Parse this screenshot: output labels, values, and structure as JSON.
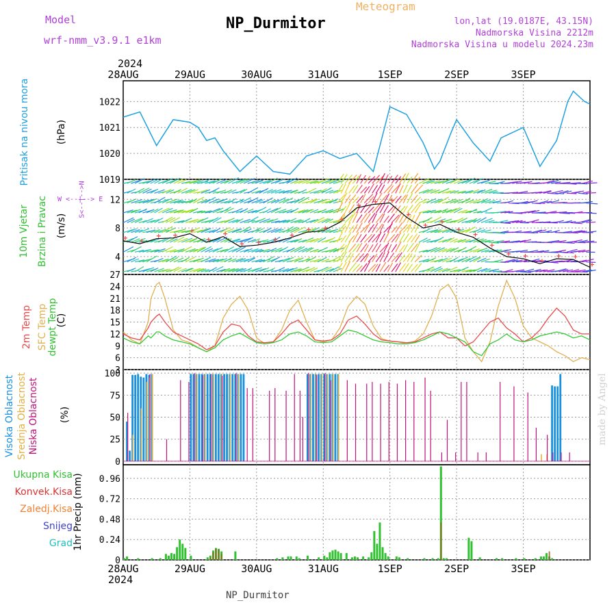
{
  "header": {
    "model_label": "Model",
    "model_value": "wrf-nmm_v3.9.1  e1km",
    "app_title": "Meteogram",
    "station_title": "NP_Durmitor",
    "location": "lon,lat (19.0187E, 43.15N)",
    "elevation": "Nadmorska Visina 2212m",
    "model_elevation": "Nadmorska Visina u modelu 2024.23m",
    "year": "2024"
  },
  "footer": {
    "station": "NP_Durmitor",
    "credit": "made by Angel"
  },
  "time_axis": {
    "labels": [
      "28AUG",
      "29AUG",
      "30AUG",
      "31AUG",
      "1SEP",
      "2SEP",
      "3SEP"
    ],
    "year": "2024"
  },
  "colors": {
    "pressure": "#1ea0e0",
    "temp2m": "#e84848",
    "sfc_temp": "#e0b050",
    "dewpt": "#30c830",
    "high_cloud": "#1890e0",
    "mid_cloud": "#e0b040",
    "low_cloud": "#c0107a",
    "total_precip": "#30c030",
    "conv_precip": "#e03030",
    "frz_precip": "#f08030",
    "snow": "#4040d0",
    "graupel": "#20c0c0"
  },
  "panels": {
    "pressure": {
      "labels": [
        "Pritisak na nivou mora",
        "(hPa)"
      ],
      "ylim": [
        1019,
        1022.8
      ],
      "yticks": [
        "1019",
        "1020",
        "1021",
        "1022"
      ]
    },
    "wind": {
      "labels": [
        "10m Vjetar",
        "Brzina i Pravac",
        "(m/s)"
      ],
      "compass": "W <--|--> E",
      "compass_ns": "S<--|-->N",
      "ylim": [
        1.5,
        14.8
      ],
      "yticks": [
        "4",
        "8",
        "12"
      ]
    },
    "temp": {
      "labels": [
        "2m Temp",
        "SFC Temp",
        "dewpt Temp",
        "(C)"
      ],
      "ylim": [
        3,
        27
      ],
      "yticks": [
        "3",
        "6",
        "9",
        "12",
        "15",
        "18",
        "21",
        "24",
        "27"
      ]
    },
    "cloud": {
      "labels": [
        "Visoka Oblacnost",
        "Srednja Oblacnost",
        "Niska Oblacnost",
        "(%)"
      ],
      "ylim": [
        0,
        100
      ],
      "yticks": [
        "0",
        "25",
        "50",
        "75",
        "100"
      ]
    },
    "precip": {
      "labels": [
        "Ukupna Kisa",
        "Konvek.Kisa",
        "Zaledj.Kisa",
        "Snijeg",
        "Grad"
      ],
      "ylabel": "1hr Precip (mm)",
      "ylim": [
        0,
        1.12
      ],
      "yticks": [
        "0",
        "0.24",
        "0.48",
        "0.72",
        "0.96"
      ]
    }
  },
  "chart_data": [
    {
      "type": "line",
      "name": "pressure",
      "title": "Pritisak na nivou mora",
      "ylabel": "(hPa)",
      "x_unit": "hours from 28AUG 00",
      "ylim": [
        1019,
        1022.8
      ],
      "series": [
        {
          "name": "Pritisak na nivou mora",
          "x": [
            0,
            6,
            12,
            18,
            24,
            27,
            30,
            33,
            36,
            42,
            48,
            54,
            60,
            66,
            72,
            78,
            84,
            90,
            96,
            102,
            108,
            112,
            114,
            118,
            120,
            126,
            132,
            136,
            144,
            150,
            156,
            160,
            162,
            166,
            168
          ],
          "values": [
            1021.4,
            1021.6,
            1020.3,
            1021.3,
            1021.2,
            1021.0,
            1020.5,
            1020.6,
            1020.1,
            1019.3,
            1019.9,
            1019.3,
            1019.2,
            1019.9,
            1020.1,
            1019.8,
            1020.0,
            1019.3,
            1021.8,
            1021.5,
            1020.4,
            1019.4,
            1019.7,
            1020.8,
            1021.3,
            1020.4,
            1019.7,
            1020.6,
            1021.0,
            1019.5,
            1020.5,
            1022.0,
            1022.4,
            1022.0,
            1021.9
          ]
        }
      ]
    },
    {
      "type": "line",
      "name": "wind",
      "title": "10m Vjetar Brzina i Pravac",
      "ylabel": "(m/s)",
      "x_unit": "hours from 28AUG 00",
      "ylim": [
        1.5,
        14.8
      ],
      "series": [
        {
          "name": "wind speed",
          "x": [
            0,
            6,
            12,
            18,
            24,
            30,
            36,
            42,
            48,
            54,
            60,
            66,
            72,
            78,
            84,
            90,
            96,
            102,
            108,
            114,
            120,
            126,
            132,
            138,
            144,
            150,
            156,
            162,
            168
          ],
          "values": [
            6.2,
            5.8,
            6.5,
            6.6,
            7.2,
            6.0,
            6.8,
            5.4,
            5.6,
            6.0,
            6.6,
            7.4,
            7.6,
            8.8,
            10.8,
            11.3,
            11.5,
            9.5,
            8.0,
            8.5,
            7.4,
            6.7,
            5.2,
            4.0,
            3.7,
            3.0,
            3.7,
            3.6,
            2.5
          ]
        }
      ]
    },
    {
      "type": "line",
      "name": "temperature",
      "ylabel": "(C)",
      "x_unit": "hours from 28AUG 00",
      "ylim": [
        3,
        27
      ],
      "x": [
        0,
        3,
        6,
        9,
        10,
        12,
        13,
        15,
        18,
        21,
        24,
        27,
        30,
        33,
        36,
        39,
        42,
        45,
        48,
        51,
        54,
        57,
        60,
        63,
        66,
        69,
        72,
        75,
        78,
        81,
        84,
        87,
        90,
        93,
        96,
        99,
        102,
        105,
        108,
        111,
        114,
        117,
        120,
        123,
        126,
        129,
        132,
        135,
        138,
        141,
        144,
        147,
        150,
        153,
        156,
        159,
        162,
        165,
        168
      ],
      "series": [
        {
          "name": "2m Temp",
          "values": [
            12,
            11,
            10.5,
            13.5,
            15,
            16.5,
            17,
            15,
            12.5,
            11.5,
            10.5,
            9.5,
            8,
            9,
            12.5,
            14.5,
            14,
            11.5,
            10,
            9.8,
            10,
            12,
            14.5,
            15.5,
            13,
            10.5,
            10.2,
            10.5,
            12,
            15.5,
            16.5,
            14.5,
            12,
            10.5,
            10.2,
            10,
            9.8,
            10,
            11,
            12,
            12.5,
            11,
            11,
            9,
            10,
            12.5,
            15,
            16,
            13.5,
            12,
            10,
            11,
            13,
            16,
            18.5,
            16.5,
            13,
            12,
            12
          ]
        },
        {
          "name": "SFC Temp",
          "values": [
            12.5,
            10.5,
            9.5,
            15,
            21,
            24.5,
            25,
            21,
            13,
            10.5,
            9.8,
            8.5,
            7.5,
            9,
            16,
            19.5,
            21.5,
            18,
            11,
            9.5,
            10,
            13,
            18,
            20.5,
            15,
            10.5,
            10,
            10.5,
            13.5,
            19,
            21.5,
            19.5,
            14,
            10.8,
            10.2,
            10,
            9.5,
            10.2,
            12,
            16.5,
            23,
            24.5,
            21,
            11,
            7.5,
            5,
            10,
            19,
            25.5,
            21,
            14,
            11,
            10,
            9,
            7.5,
            6.5,
            5,
            6,
            5.5
          ]
        },
        {
          "name": "dewpt Temp",
          "values": [
            11,
            10,
            9.5,
            11.5,
            11,
            12.5,
            12.5,
            11.5,
            10.5,
            10,
            9.5,
            8.5,
            7.5,
            8.5,
            10.5,
            11.5,
            12.2,
            11,
            9.8,
            9.5,
            9.8,
            10.5,
            12,
            12.5,
            11.5,
            10,
            9.8,
            10,
            11.5,
            13,
            12.5,
            11.5,
            10.5,
            10,
            9.8,
            9.5,
            9.5,
            9.8,
            10.5,
            11.5,
            12.5,
            12,
            11,
            10,
            7.5,
            6.5,
            9.5,
            10.5,
            12,
            10.5,
            10,
            10.5,
            11.5,
            12,
            12.5,
            12,
            11,
            11.5,
            10.5
          ]
        }
      ]
    },
    {
      "type": "bar",
      "name": "cloud cover",
      "ylabel": "(%)",
      "x_unit": "hours from 28AUG 00",
      "ylim": [
        0,
        100
      ],
      "series": [
        {
          "name": "Visoka Oblacnost",
          "x": [
            1,
            2,
            3,
            4,
            5,
            6,
            7,
            8,
            9,
            10,
            24,
            25,
            26,
            27,
            28,
            29,
            30,
            31,
            32,
            33,
            34,
            35,
            36,
            37,
            38,
            39,
            40,
            41,
            42,
            43,
            66,
            67,
            68,
            69,
            70,
            71,
            72,
            73,
            74,
            75,
            76,
            77,
            154,
            155,
            156,
            157
          ],
          "values": [
            45,
            12,
            98,
            98,
            99,
            96,
            95,
            99,
            98,
            99,
            99,
            99,
            99,
            99,
            99,
            99,
            99,
            99,
            99,
            99,
            99,
            99,
            99,
            99,
            99,
            99,
            99,
            99,
            99,
            99,
            99,
            99,
            99,
            99,
            99,
            99,
            99,
            99,
            99,
            99,
            99,
            99,
            86,
            85,
            85,
            99
          ]
        },
        {
          "name": "Srednja Oblacnost",
          "x": [
            3,
            6,
            8,
            9,
            10,
            26,
            29,
            32,
            35,
            38,
            41,
            67,
            69,
            71,
            73,
            75,
            77,
            150,
            152
          ],
          "values": [
            30,
            60,
            90,
            95,
            99,
            99,
            99,
            99,
            99,
            99,
            99,
            99,
            99,
            99,
            99,
            99,
            99,
            8,
            8
          ]
        },
        {
          "name": "Niska Oblacnost",
          "x": [
            1,
            9,
            15,
            20,
            23,
            25,
            28,
            31,
            35,
            40,
            44,
            46,
            52,
            54,
            58,
            61,
            63,
            64,
            66,
            69,
            72,
            74,
            80,
            83,
            87,
            89,
            92,
            95,
            98,
            101,
            104,
            108,
            110,
            114,
            116,
            119,
            121,
            123,
            127,
            130,
            135,
            140,
            145,
            148,
            152,
            154,
            157,
            160
          ],
          "values": [
            55,
            99,
            25,
            92,
            90,
            100,
            98,
            99,
            97,
            100,
            83,
            83,
            80,
            83,
            80,
            99,
            80,
            50,
            100,
            98,
            100,
            92,
            92,
            88,
            88,
            90,
            88,
            90,
            88,
            92,
            90,
            95,
            80,
            10,
            47,
            10,
            90,
            90,
            10,
            10,
            90,
            85,
            78,
            38,
            30,
            10,
            10,
            10
          ]
        }
      ]
    },
    {
      "type": "bar",
      "name": "precipitation",
      "ylabel": "1hr Precip (mm)",
      "x_unit": "hours from 28AUG 00",
      "ylim": [
        0,
        1.12
      ],
      "series": [
        {
          "name": "Ukupna Kisa",
          "x": [
            0,
            1,
            5,
            10,
            13,
            15,
            16,
            17,
            18,
            19,
            20,
            21,
            22,
            24,
            30,
            31,
            32,
            33,
            34,
            35,
            40,
            55,
            57,
            59,
            60,
            62,
            63,
            66,
            70,
            72,
            73,
            74,
            75,
            76,
            77,
            78,
            80,
            82,
            83,
            84,
            86,
            88,
            89,
            90,
            91,
            92,
            93,
            94,
            95,
            98,
            99,
            102,
            108,
            111,
            113,
            114,
            115,
            116,
            124,
            125,
            128,
            134,
            136,
            141,
            144,
            148,
            150,
            151,
            152,
            153,
            154
          ],
          "values": [
            0.02,
            0.04,
            0.02,
            0.02,
            0.02,
            0.07,
            0.05,
            0.08,
            0.07,
            0.15,
            0.24,
            0.19,
            0.14,
            0.05,
            0.03,
            0.05,
            0.11,
            0.14,
            0.13,
            0.1,
            0.1,
            0.02,
            0.03,
            0.04,
            0.04,
            0.04,
            0.02,
            0.05,
            0.03,
            0.05,
            0.03,
            0.09,
            0.11,
            0.12,
            0.1,
            0.08,
            0.08,
            0.03,
            0.04,
            0.03,
            0.04,
            0.03,
            0.09,
            0.34,
            0.19,
            0.44,
            0.15,
            0.08,
            0.04,
            0.04,
            0.03,
            0.02,
            0.02,
            0.02,
            0.02,
            1.1,
            0.02,
            0.02,
            0.26,
            0.22,
            0.03,
            0.02,
            0.02,
            0.02,
            0.02,
            0.02,
            0.04,
            0.04,
            0.08,
            0.04,
            0.02
          ]
        },
        {
          "name": "Konvek.Kisa",
          "x": [
            31,
            32,
            33,
            34,
            35,
            114,
            153
          ],
          "values": [
            0.03,
            0.09,
            0.13,
            0.12,
            0.07,
            0.44,
            0.1
          ]
        },
        {
          "name": "Zaledj.Kisa",
          "x": [],
          "values": []
        },
        {
          "name": "Snijeg",
          "x": [],
          "values": []
        },
        {
          "name": "Grad",
          "x": [],
          "values": []
        }
      ]
    }
  ]
}
